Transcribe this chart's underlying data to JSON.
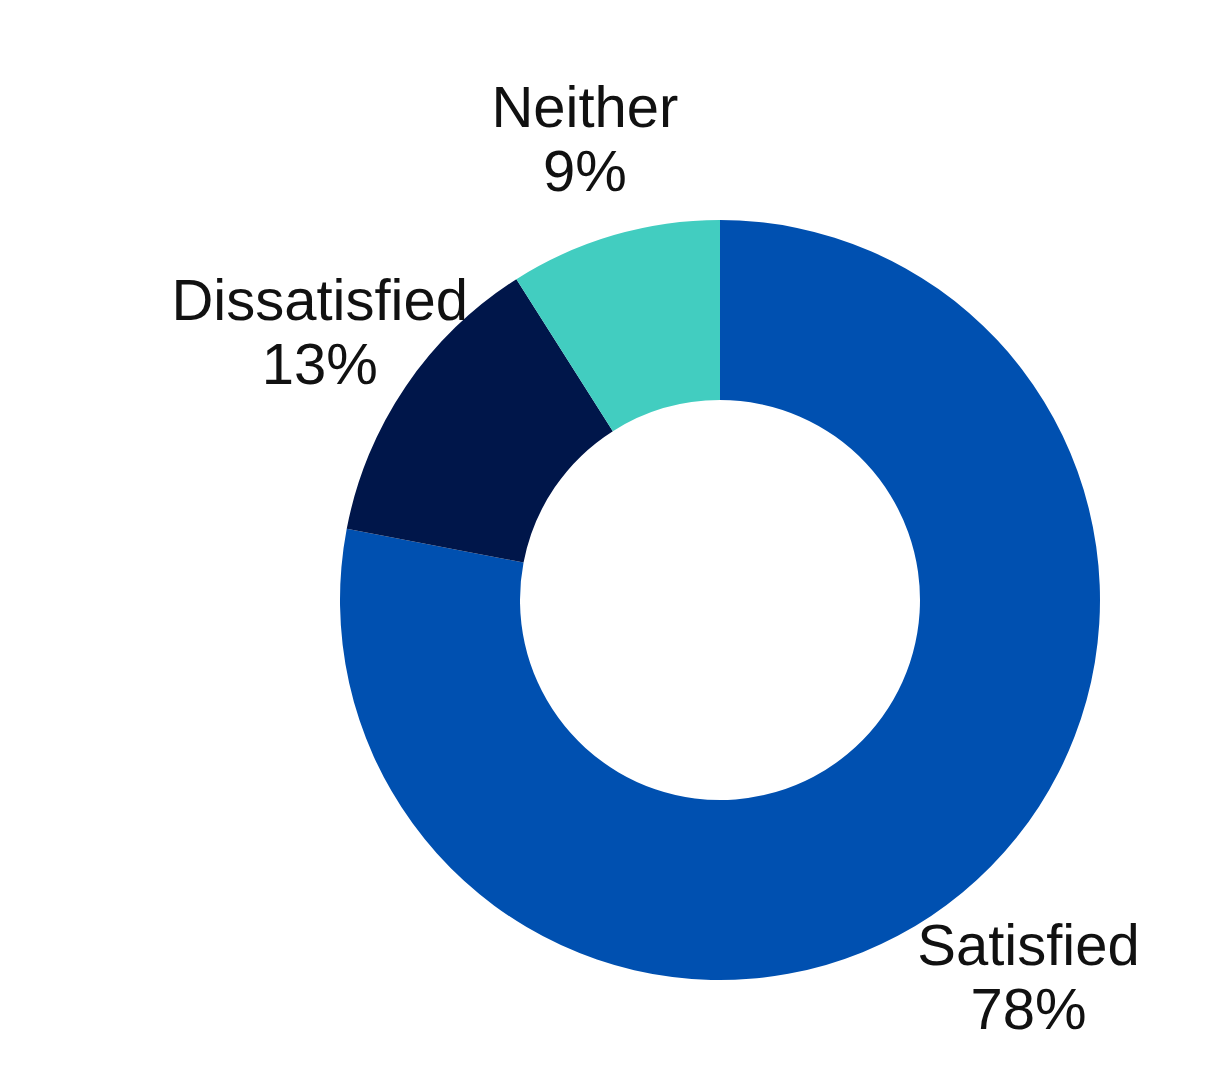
{
  "chart_data": {
    "type": "donut",
    "categories": [
      "Satisfied",
      "Dissatisfied",
      "Neither"
    ],
    "values": [
      78,
      13,
      9
    ],
    "value_labels": [
      "78%",
      "13%",
      "9%"
    ],
    "colors": [
      "#0050b0",
      "#00164a",
      "#42cdc0"
    ]
  }
}
